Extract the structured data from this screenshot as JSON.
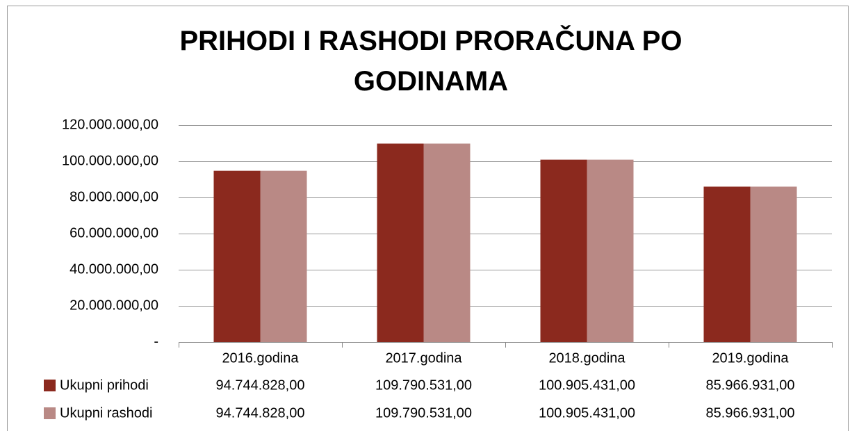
{
  "chart_data": {
    "type": "bar",
    "title": "PRIHODI I RASHODI PRORAČUNA PO GODINAMA",
    "categories": [
      "2016.godina",
      "2017.godina",
      "2018.godina",
      "2019.godina"
    ],
    "series": [
      {
        "name": "Ukupni prihodi",
        "color": "#8b291e",
        "values": [
          94744828,
          109790531,
          100905431,
          85966931
        ],
        "value_labels": [
          "94.744.828,00",
          "109.790.531,00",
          "100.905.431,00",
          "85.966.931,00"
        ]
      },
      {
        "name": "Ukupni rashodi",
        "color": "#b98985",
        "values": [
          94744828,
          109790531,
          100905431,
          85966931
        ],
        "value_labels": [
          "94.744.828,00",
          "109.790.531,00",
          "100.905.431,00",
          "85.966.931,00"
        ]
      }
    ],
    "ylim": [
      0,
      120000000
    ],
    "yticks": [
      {
        "value": 0,
        "label": "-"
      },
      {
        "value": 20000000,
        "label": "20.000.000,00"
      },
      {
        "value": 40000000,
        "label": "40.000.000,00"
      },
      {
        "value": 60000000,
        "label": "60.000.000,00"
      },
      {
        "value": 80000000,
        "label": "80.000.000,00"
      },
      {
        "value": 100000000,
        "label": "100.000.000,00"
      },
      {
        "value": 120000000,
        "label": "120.000.000,00"
      }
    ],
    "grid": true
  }
}
